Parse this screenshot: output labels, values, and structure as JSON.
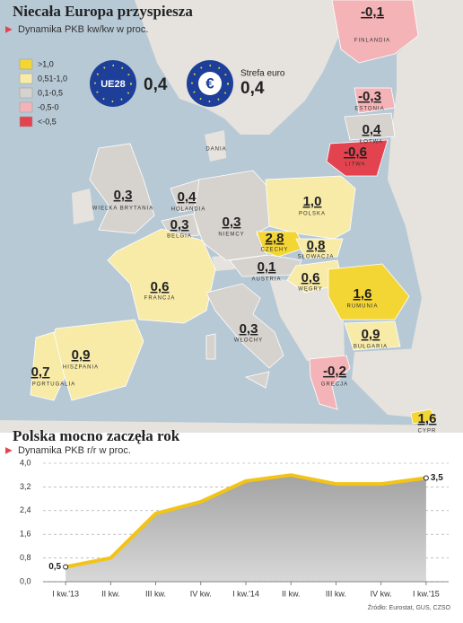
{
  "map": {
    "title": "Niecała Europa przyspiesza",
    "subtitle": "Dynamika PKB kw/kw w proc.",
    "legend": [
      {
        "label": ">1,0",
        "color": "#f3d634"
      },
      {
        "label": "0,51-1,0",
        "color": "#f8eba8"
      },
      {
        "label": "0,1-0,5",
        "color": "#d6d2cd"
      },
      {
        "label": "-0,5-0",
        "color": "#f4b4b7"
      },
      {
        "label": "<-0,5",
        "color": "#e3434f"
      }
    ],
    "eu": {
      "label": "UE28",
      "value": "0,4"
    },
    "euro": {
      "symbol": "€",
      "label": "Strefa euro",
      "value": "0,4"
    },
    "other_labels": [
      "DANIA"
    ],
    "countries": [
      {
        "name": "FINLANDIA",
        "value": "-0,1",
        "color": "#f4b4b7"
      },
      {
        "name": "ESTONIA",
        "value": "-0,3",
        "color": "#f4b4b7"
      },
      {
        "name": "ŁOTWA",
        "value": "0,4",
        "color": "#d6d2cd"
      },
      {
        "name": "LITWA",
        "value": "-0,6",
        "color": "#e3434f"
      },
      {
        "name": "WIELKA BRYTANIA",
        "value": "0,3",
        "color": "#d6d2cd"
      },
      {
        "name": "HOLANDIA",
        "value": "0,4",
        "color": "#d6d2cd"
      },
      {
        "name": "BELGIA",
        "value": "0,3",
        "color": "#d6d2cd"
      },
      {
        "name": "NIEMCY",
        "value": "0,3",
        "color": "#d6d2cd"
      },
      {
        "name": "POLSKA",
        "value": "1,0",
        "color": "#f8eba8"
      },
      {
        "name": "CZECHY",
        "value": "2,8",
        "color": "#f3d634"
      },
      {
        "name": "SŁOWACJA",
        "value": "0,8",
        "color": "#f8eba8"
      },
      {
        "name": "AUSTRIA",
        "value": "0,1",
        "color": "#d6d2cd"
      },
      {
        "name": "WĘGRY",
        "value": "0,6",
        "color": "#f8eba8"
      },
      {
        "name": "FRANCJA",
        "value": "0,6",
        "color": "#f8eba8"
      },
      {
        "name": "RUMUNIA",
        "value": "1,6",
        "color": "#f3d634"
      },
      {
        "name": "WŁOCHY",
        "value": "0,3",
        "color": "#d6d2cd"
      },
      {
        "name": "BUŁGARIA",
        "value": "0,9",
        "color": "#f8eba8"
      },
      {
        "name": "HISZPANIA",
        "value": "0,9",
        "color": "#f8eba8"
      },
      {
        "name": "PORTUGALIA",
        "value": "0,7",
        "color": "#f8eba8"
      },
      {
        "name": "GRECJA",
        "value": "-0,2",
        "color": "#f4b4b7"
      },
      {
        "name": "CYPR",
        "value": "1,6",
        "color": "#f3d634"
      }
    ]
  },
  "chart_data": {
    "type": "area",
    "title": "Polska mocno zaczęła rok",
    "subtitle": "Dynamika PKB r/r w proc.",
    "categories": [
      "I kw.'13",
      "II kw.",
      "III kw.",
      "IV kw.",
      "I kw.'14",
      "II kw.",
      "III kw.",
      "IV kw.",
      "I kw.'15"
    ],
    "values": [
      0.5,
      0.8,
      2.3,
      2.7,
      3.4,
      3.6,
      3.3,
      3.3,
      3.5
    ],
    "value_labels": [
      "0,5",
      null,
      null,
      null,
      null,
      null,
      null,
      null,
      "3,5"
    ],
    "color": "#f2c417",
    "fill": "#a3a3a3",
    "ylim": [
      0,
      4
    ],
    "yticks": [
      {
        "value": 0,
        "label": "0,0"
      },
      {
        "value": 0.8,
        "label": "0,8"
      },
      {
        "value": 1.6,
        "label": "1,6"
      },
      {
        "value": 2.4,
        "label": "2,4"
      },
      {
        "value": 3.2,
        "label": "3,2"
      },
      {
        "value": 4,
        "label": "4,0"
      }
    ],
    "grid": true,
    "source": "Źródło: Eurostat, GUS, CZSO"
  }
}
